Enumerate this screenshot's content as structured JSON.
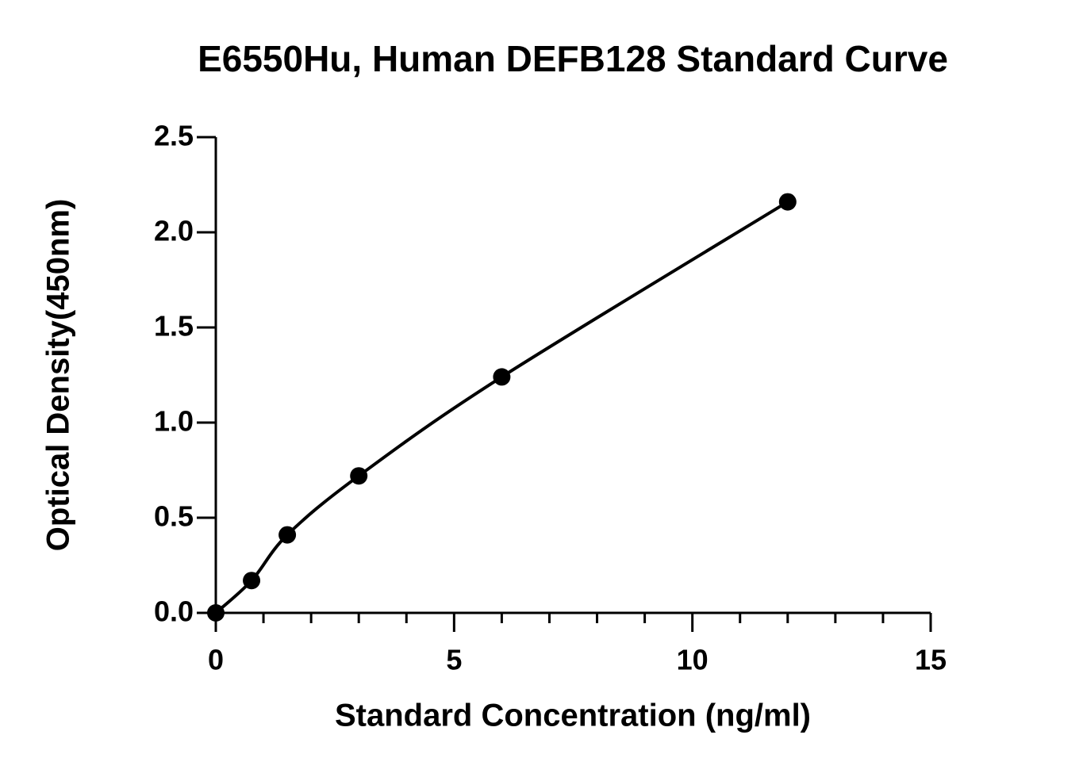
{
  "chart_data": {
    "type": "scatter",
    "title": "E6550Hu, Human DEFB128 Standard Curve",
    "x_label": "Standard Concentration (ng/ml)",
    "y_label": "Optical Density(450nm)",
    "series": [
      {
        "color": "#000000",
        "x": [
          0,
          0.75,
          1.5,
          3,
          6,
          12
        ],
        "values": [
          0,
          0.17,
          0.41,
          0.72,
          1.24,
          2.16
        ]
      }
    ],
    "fit_line": true,
    "xlim": [
      0,
      15
    ],
    "xticks": [
      0,
      5,
      10,
      15
    ],
    "xminorticks": [
      1,
      2,
      3,
      4,
      6,
      7,
      8,
      9,
      11,
      12,
      13,
      14
    ],
    "ylim": [
      0,
      2.5
    ],
    "yticks": [
      {
        "value": 0,
        "label": "0.0"
      },
      0.5,
      {
        "value": 1,
        "label": "1.0"
      },
      1.5,
      {
        "value": 2,
        "label": "2.0"
      },
      2.5
    ],
    "grid": false
  }
}
